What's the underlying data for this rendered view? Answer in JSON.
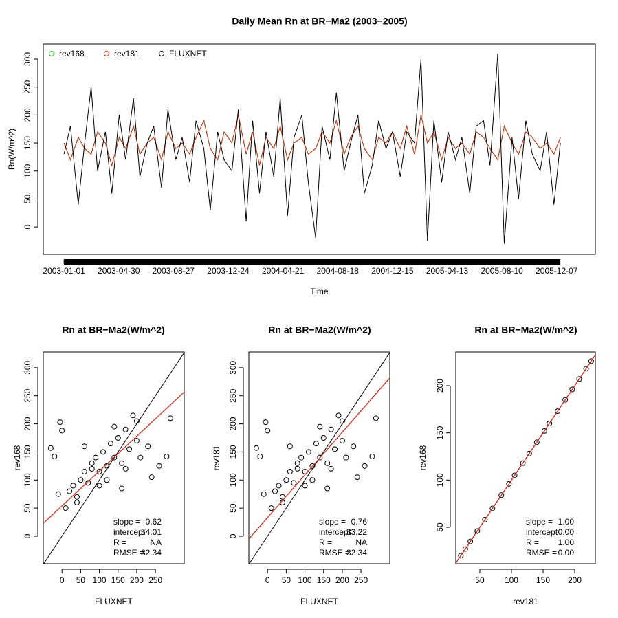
{
  "chart_data": [
    {
      "type": "line",
      "title": "Daily Mean Rn at BR−Ma2 (2003−2005)",
      "x_label": "Time",
      "y_label": "Rn(W/m^2)",
      "x": [
        "2003-01-01",
        "2003-01-15",
        "2003-02-01",
        "2003-02-15",
        "2003-03-01",
        "2003-03-15",
        "2003-04-01",
        "2003-04-15",
        "2003-05-01",
        "2003-05-15",
        "2003-06-01",
        "2003-06-15",
        "2003-07-01",
        "2003-07-15",
        "2003-08-01",
        "2003-08-15",
        "2003-09-01",
        "2003-09-15",
        "2003-10-01",
        "2003-10-15",
        "2003-11-01",
        "2003-11-15",
        "2003-12-01",
        "2003-12-15",
        "2004-01-01",
        "2004-01-15",
        "2004-02-01",
        "2004-02-15",
        "2004-03-01",
        "2004-03-15",
        "2004-04-01",
        "2004-04-15",
        "2004-05-01",
        "2004-05-15",
        "2004-06-01",
        "2004-06-15",
        "2004-07-01",
        "2004-07-15",
        "2004-08-01",
        "2004-08-15",
        "2004-09-01",
        "2004-09-15",
        "2004-10-01",
        "2004-10-15",
        "2004-11-01",
        "2004-11-15",
        "2004-12-01",
        "2004-12-15",
        "2005-01-01",
        "2005-01-15",
        "2005-02-01",
        "2005-02-15",
        "2005-03-01",
        "2005-03-15",
        "2005-04-01",
        "2005-04-15",
        "2005-05-01",
        "2005-05-15",
        "2005-06-01",
        "2005-06-15",
        "2005-07-01",
        "2005-07-15",
        "2005-08-01",
        "2005-08-15",
        "2005-09-01",
        "2005-09-15",
        "2005-10-01",
        "2005-10-15",
        "2005-11-01",
        "2005-11-15",
        "2005-12-01",
        "2005-12-15"
      ],
      "series": [
        {
          "name": "rev168",
          "color": "#22cc22",
          "values": [
            150,
            120,
            160,
            140,
            130,
            170,
            150,
            110,
            160,
            140,
            180,
            130,
            150,
            160,
            120,
            170,
            140,
            150,
            130,
            160,
            190,
            140,
            120,
            170,
            150,
            200,
            130,
            170,
            110,
            160,
            140,
            180,
            120,
            150,
            160,
            130,
            140,
            170,
            150,
            190,
            130,
            160,
            180,
            140,
            120,
            160,
            150,
            170,
            140,
            180,
            130,
            200,
            150,
            170,
            120,
            160,
            140,
            150,
            130,
            170,
            160,
            140,
            120,
            180,
            150,
            130,
            170,
            160,
            140,
            150,
            130,
            160
          ]
        },
        {
          "name": "rev181",
          "color": "#e8200c",
          "values": [
            150,
            120,
            160,
            140,
            130,
            170,
            150,
            110,
            160,
            140,
            180,
            130,
            150,
            160,
            120,
            170,
            140,
            150,
            130,
            160,
            190,
            140,
            120,
            170,
            150,
            200,
            130,
            170,
            110,
            160,
            140,
            180,
            120,
            150,
            160,
            130,
            140,
            170,
            150,
            190,
            130,
            160,
            180,
            140,
            120,
            160,
            150,
            170,
            140,
            180,
            130,
            200,
            150,
            170,
            120,
            160,
            140,
            150,
            130,
            170,
            160,
            140,
            120,
            180,
            150,
            130,
            170,
            160,
            140,
            150,
            130,
            160
          ]
        },
        {
          "name": "FLUXNET",
          "color": "#000000",
          "values": [
            130,
            180,
            40,
            150,
            250,
            100,
            170,
            60,
            200,
            120,
            230,
            90,
            150,
            180,
            70,
            210,
            120,
            160,
            80,
            190,
            140,
            30,
            170,
            120,
            100,
            210,
            10,
            190,
            60,
            170,
            90,
            230,
            20,
            160,
            200,
            80,
            -20,
            180,
            120,
            240,
            100,
            150,
            200,
            60,
            110,
            190,
            140,
            170,
            90,
            170,
            150,
            300,
            -25,
            190,
            80,
            170,
            120,
            160,
            60,
            180,
            190,
            110,
            310,
            -30,
            160,
            50,
            190,
            130,
            100,
            170,
            40,
            150
          ]
        }
      ],
      "xlim": [
        "2002-11-17",
        "2006-03-01"
      ],
      "xticks": [
        "2003-01-01",
        "2003-04-30",
        "2003-08-27",
        "2003-12-24",
        "2004-04-21",
        "2004-08-18",
        "2004-12-15",
        "2005-04-13",
        "2005-08-10",
        "2005-12-07"
      ],
      "ylim": [
        -49,
        327
      ],
      "yticks": [
        0,
        50,
        100,
        150,
        200,
        250,
        300
      ],
      "legend": "top-left"
    },
    {
      "type": "scatter",
      "title": "Rn at BR−Ma2(W/m^2)",
      "x_label": "FLUXNET",
      "y_label": "rev168",
      "x": [
        -30,
        -20,
        -5,
        0,
        10,
        20,
        30,
        40,
        50,
        60,
        70,
        80,
        90,
        100,
        110,
        120,
        130,
        140,
        150,
        160,
        170,
        180,
        190,
        200,
        210,
        230,
        260,
        280,
        -10,
        60,
        100,
        140,
        170,
        200,
        240,
        290,
        120,
        80,
        160,
        40
      ],
      "values": [
        157,
        142,
        203,
        188,
        50,
        80,
        90,
        60,
        100,
        115,
        95,
        120,
        140,
        115,
        150,
        125,
        165,
        140,
        175,
        130,
        190,
        155,
        215,
        170,
        140,
        160,
        125,
        142,
        75,
        160,
        90,
        195,
        120,
        205,
        105,
        210,
        100,
        130,
        85,
        70
      ],
      "fit_color": "#e8200c",
      "stats": {
        "labels": [
          "slope =",
          "intercept =",
          "R =",
          "RMSE ="
        ],
        "values": [
          0.62,
          54.01,
          null,
          32.34
        ],
        "value_labels": [
          "0.62",
          "54.01",
          "NA",
          "32.34"
        ]
      },
      "xlim": [
        -50,
        327
      ],
      "xticks": [
        0,
        50,
        100,
        150,
        200,
        250
      ],
      "ylim": [
        -49,
        328
      ],
      "yticks": [
        0,
        50,
        100,
        150,
        200,
        250,
        300
      ]
    },
    {
      "type": "scatter",
      "title": "Rn at BR−Ma2(W/m^2)",
      "x_label": "FLUXNET",
      "y_label": "rev181",
      "x": [
        -30,
        -20,
        -5,
        0,
        10,
        20,
        30,
        40,
        50,
        60,
        70,
        80,
        90,
        100,
        110,
        120,
        130,
        140,
        150,
        160,
        170,
        180,
        190,
        200,
        210,
        230,
        260,
        280,
        -10,
        60,
        100,
        140,
        170,
        200,
        240,
        290,
        120,
        80,
        160,
        40
      ],
      "values": [
        157,
        142,
        203,
        188,
        50,
        80,
        90,
        60,
        100,
        115,
        95,
        120,
        140,
        115,
        150,
        125,
        165,
        140,
        175,
        130,
        190,
        155,
        215,
        170,
        140,
        160,
        125,
        142,
        75,
        160,
        90,
        195,
        120,
        205,
        105,
        210,
        100,
        130,
        85,
        70
      ],
      "fit_color": "#e8200c",
      "stats": {
        "labels": [
          "slope =",
          "intercept =",
          "R =",
          "RMSE ="
        ],
        "values": [
          0.76,
          33.22,
          null,
          32.34
        ],
        "value_labels": [
          "0.76",
          "33.22",
          "NA",
          "32.34"
        ]
      },
      "xlim": [
        -50,
        327
      ],
      "xticks": [
        0,
        50,
        100,
        150,
        200,
        250
      ],
      "ylim": [
        -49,
        328
      ],
      "yticks": [
        0,
        50,
        100,
        150,
        200,
        250,
        300
      ]
    },
    {
      "type": "scatter",
      "title": "Rn at BR−Ma2(W/m^2)",
      "x_label": "rev181",
      "y_label": "rev168",
      "x": [
        20,
        27,
        35,
        46,
        58,
        70,
        84,
        96,
        105,
        118,
        128,
        140,
        152,
        160,
        173,
        185,
        196,
        207,
        218,
        226
      ],
      "values": [
        20,
        27,
        35,
        46,
        58,
        70,
        84,
        96,
        105,
        118,
        128,
        140,
        152,
        160,
        173,
        185,
        196,
        207,
        218,
        226
      ],
      "fit_color": "#e8200c",
      "stats": {
        "labels": [
          "slope =",
          "intercept =",
          "R =",
          "RMSE ="
        ],
        "values": [
          1,
          0,
          1,
          0
        ],
        "value_labels": [
          "1.00",
          "0.00",
          "1.00",
          "0.00"
        ]
      },
      "xlim": [
        12,
        232.6
      ],
      "xticks": [
        50,
        100,
        150,
        200
      ],
      "ylim": [
        11.4,
        235.7
      ],
      "yticks": [
        50,
        100,
        150,
        200
      ]
    }
  ]
}
